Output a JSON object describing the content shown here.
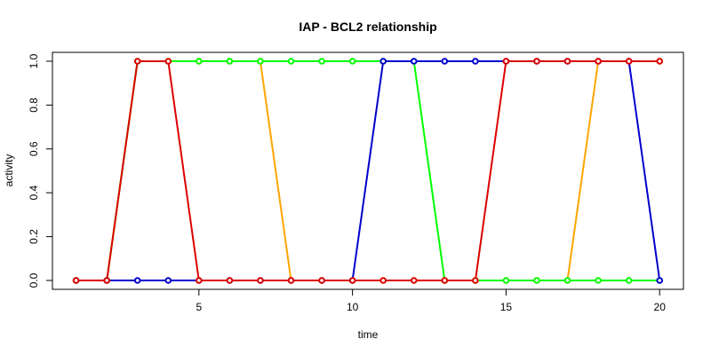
{
  "chart_data": {
    "type": "line",
    "title": "IAP - BCL2 relationship",
    "xlabel": "time",
    "ylabel": "activity",
    "xlim": [
      1,
      20
    ],
    "ylim": [
      0,
      1
    ],
    "x_ticks": [
      5,
      10,
      15,
      20
    ],
    "y_ticks": [
      0.0,
      0.2,
      0.4,
      0.6,
      0.8,
      1.0
    ],
    "y_tick_labels": [
      "0.0",
      "0.2",
      "0.4",
      "0.6",
      "0.8",
      "1.0"
    ],
    "grid": false,
    "x": [
      1,
      2,
      3,
      4,
      5,
      6,
      7,
      8,
      9,
      10,
      11,
      12,
      13,
      14,
      15,
      16,
      17,
      18,
      19,
      20
    ],
    "series": [
      {
        "color": "#FFA500",
        "values": [
          0,
          0,
          1,
          1,
          1,
          1,
          1,
          0,
          0,
          0,
          0,
          0,
          0,
          0,
          0,
          0,
          0,
          1,
          1,
          1
        ]
      },
      {
        "color": "#00FF00",
        "values": [
          0,
          0,
          1,
          1,
          1,
          1,
          1,
          1,
          1,
          1,
          1,
          1,
          0,
          0,
          0,
          0,
          0,
          0,
          0,
          0
        ]
      },
      {
        "color": "#0000CD",
        "values": [
          0,
          0,
          0,
          0,
          0,
          0,
          0,
          0,
          0,
          0,
          1,
          1,
          1,
          1,
          1,
          1,
          1,
          1,
          1,
          0
        ]
      },
      {
        "color": "#DD0000",
        "values": [
          0,
          0,
          1,
          1,
          0,
          0,
          0,
          0,
          0,
          0,
          0,
          0,
          0,
          0,
          1,
          1,
          1,
          1,
          1,
          1
        ]
      }
    ]
  }
}
